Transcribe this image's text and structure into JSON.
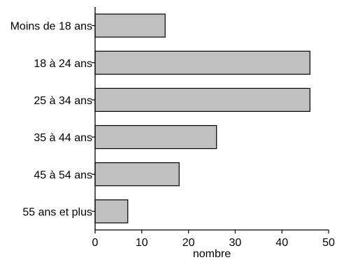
{
  "chart_data": {
    "type": "bar",
    "orientation": "horizontal",
    "categories": [
      "Moins de 18 ans",
      "18 à 24 ans",
      "25 à 34 ans",
      "35 à 44 ans",
      "45 à 54 ans",
      "55 ans et plus"
    ],
    "values": [
      15,
      46,
      46,
      26,
      18,
      7
    ],
    "xlabel": "nombre",
    "ylabel": "",
    "xlim": [
      0,
      50
    ],
    "xticks": [
      0,
      10,
      20,
      30,
      40,
      50
    ],
    "grid": false,
    "bar_color": "#c0c0c0",
    "bar_edge_color": "#000000"
  }
}
